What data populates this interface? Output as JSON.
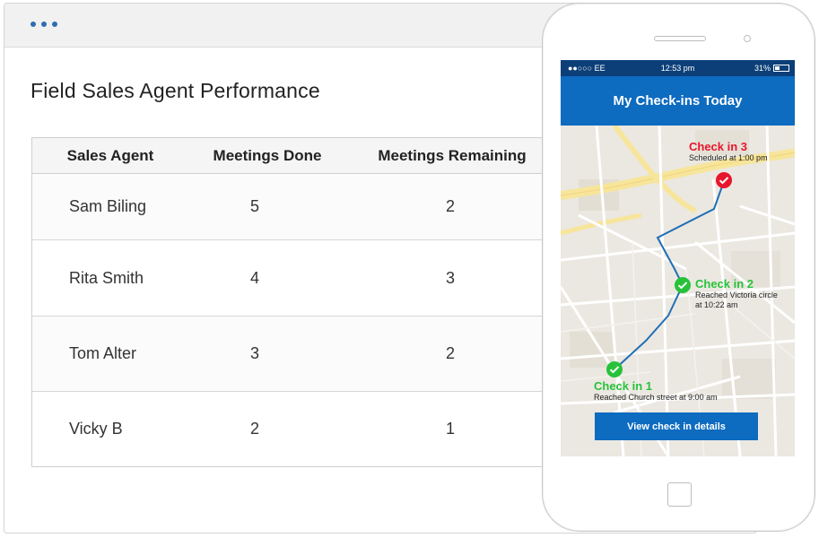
{
  "browser": {
    "title": "Field Sales Agent Performance"
  },
  "table": {
    "headers": [
      "Sales Agent",
      "Meetings Done",
      "Meetings Remaining"
    ],
    "rows": [
      {
        "agent": "Sam Biling",
        "done": "5",
        "remaining": "2"
      },
      {
        "agent": "Rita Smith",
        "done": "4",
        "remaining": "3"
      },
      {
        "agent": "Tom Alter",
        "done": "3",
        "remaining": "2"
      },
      {
        "agent": "Vicky B",
        "done": "2",
        "remaining": "1"
      }
    ]
  },
  "phone": {
    "status": {
      "carrier": "●●○○○ EE",
      "time": "12:53 pm",
      "battery": "31%"
    },
    "app_title": "My Check-ins Today",
    "checkins": [
      {
        "title": "Check in 3",
        "detail1": "Scheduled at 1:00 pm",
        "detail2": "",
        "color": "#e8162d"
      },
      {
        "title": "Check in 2",
        "detail1": "Reached Victoria circle",
        "detail2": "at 10:22 am",
        "color": "#27c23a"
      },
      {
        "title": "Check in 1",
        "detail1": "Reached Church street at 9:00 am",
        "detail2": "",
        "color": "#27c23a"
      }
    ],
    "details_button": "View check in details"
  },
  "colors": {
    "accent": "#0d6bc0",
    "status_bar": "#0c3f78",
    "route": "#1f6fb5"
  }
}
